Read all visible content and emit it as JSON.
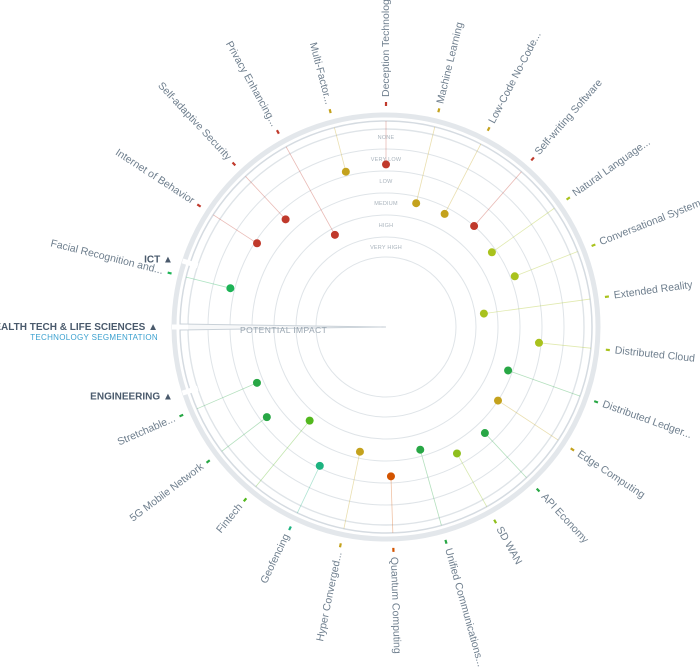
{
  "chart_data": {
    "type": "radar",
    "axis_label": "POTENTIAL IMPACT",
    "subtitle": "TECHNOLOGY SEGMENTATION",
    "rings": [
      "NONE",
      "VERY LOW",
      "LOW",
      "MEDIUM",
      "HIGH",
      "VERY HIGH"
    ],
    "segments": [
      {
        "name": "ICT",
        "angle": 162
      },
      {
        "name": "HEALTH TECH & LIFE SCIENCES",
        "angle": 180
      },
      {
        "name": "ENGINEERING",
        "angle": 198
      }
    ],
    "technologies": [
      {
        "name": "Deception Technology",
        "angle": 90,
        "impact": 2.2,
        "color": "#c0392b"
      },
      {
        "name": "Machine Learning",
        "angle": 76.3,
        "impact": 3.8,
        "color": "#c4a21d"
      },
      {
        "name": "Low-Code No-Code...",
        "angle": 62.6,
        "impact": 3.8,
        "color": "#c4a21d"
      },
      {
        "name": "Self-writing Software",
        "angle": 48.9,
        "impact": 3.5,
        "color": "#c0392b"
      },
      {
        "name": "Natural Language...",
        "angle": 35.2,
        "impact": 3.7,
        "color": "#a9c21d"
      },
      {
        "name": "Conversational Systems",
        "angle": 21.5,
        "impact": 3.3,
        "color": "#a9c21d"
      },
      {
        "name": "Extended Reality",
        "angle": 7.8,
        "impact": 5.1,
        "color": "#a9c21d"
      },
      {
        "name": "Distributed Cloud",
        "angle": -5.9,
        "impact": 2.6,
        "color": "#a9c21d"
      },
      {
        "name": "Distributed Ledger...",
        "angle": -19.6,
        "impact": 3.7,
        "color": "#28a745"
      },
      {
        "name": "Edge Computing",
        "angle": -33.3,
        "impact": 3.5,
        "color": "#c4a21d"
      },
      {
        "name": "API Economy",
        "angle": -47,
        "impact": 3.0,
        "color": "#28a745"
      },
      {
        "name": "SD WAN",
        "angle": -60.7,
        "impact": 3.0,
        "color": "#8fbf1d"
      },
      {
        "name": "Unified Communications...",
        "angle": -74.4,
        "impact": 3.8,
        "color": "#28a745"
      },
      {
        "name": "Quantum Computing",
        "angle": -88.1,
        "impact": 2.8,
        "color": "#d35400"
      },
      {
        "name": "Hyper Converged...",
        "angle": -101.8,
        "impact": 3.8,
        "color": "#c4a21d"
      },
      {
        "name": "Geofencing",
        "angle": -115.5,
        "impact": 2.6,
        "color": "#1db380"
      },
      {
        "name": "Fintech",
        "angle": -129.2,
        "impact": 4.1,
        "color": "#52b81d"
      },
      {
        "name": "5G Mobile Network",
        "angle": -142.9,
        "impact": 2.8,
        "color": "#28a745"
      },
      {
        "name": "Stretchable...",
        "angle": -156.6,
        "impact": 3.2,
        "color": "#28a745"
      },
      {
        "name": "Facial Recognition and...",
        "angle": 166,
        "impact": 2.3,
        "color": "#1db356"
      },
      {
        "name": "Internet of Behavior",
        "angle": 147,
        "impact": 2.6,
        "color": "#c0392b"
      },
      {
        "name": "Self-adaptive Security",
        "angle": 133,
        "impact": 2.9,
        "color": "#c0392b"
      },
      {
        "name": "Privacy Enhancing...",
        "angle": 119,
        "impact": 4.8,
        "color": "#c0392b"
      },
      {
        "name": "Multi-Factor...",
        "angle": 104.5,
        "impact": 2.3,
        "color": "#c4a21d"
      }
    ]
  }
}
